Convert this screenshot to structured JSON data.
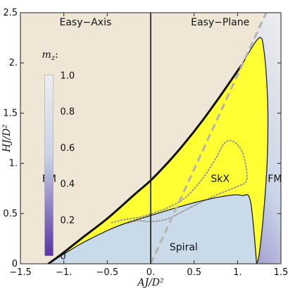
{
  "chart_data": {
    "type": "phase-diagram",
    "xlabel": "AJ/D²",
    "ylabel": "HJ/D²",
    "xlim": [
      -1.5,
      1.5
    ],
    "ylim": [
      0,
      2.5
    ],
    "xticks": [
      -1.5,
      -1.0,
      -0.5,
      0.0,
      0.5,
      1.0,
      1.5
    ],
    "xtick_labels": [
      "−1.5",
      "−1.",
      "−0.5",
      "0.",
      "0.5",
      "1.",
      "1.5"
    ],
    "yticks": [
      0,
      0.5,
      1.0,
      1.5,
      2.0,
      2.5
    ],
    "ytick_labels": [
      "0",
      "0.5",
      "1.",
      "1.5",
      "2.",
      "2.5"
    ],
    "colors": {
      "easy_axis_bg": "#efe6d6",
      "skx": "#ffff33",
      "spiral": "#c9dbe8",
      "fm_high": "#eeeeee",
      "fm_mid": "#c8d4e6",
      "fm_low": "#5a33a5",
      "boundary": "#111111",
      "dashed_line": "#b4b4b4",
      "dotted_line": "#999999"
    },
    "regions": [
      {
        "name": "Easy−Axis",
        "label": "Easy−Axis"
      },
      {
        "name": "Easy−Plane",
        "label": "Easy−Plane"
      },
      {
        "name": "SkX",
        "label": "SkX"
      },
      {
        "name": "FM-left",
        "label": "FM"
      },
      {
        "name": "FM-right",
        "label": "FM"
      },
      {
        "name": "Spiral",
        "label": "Spiral"
      }
    ],
    "boundaries": {
      "upper_skx": [
        [
          -1.18,
          0.0
        ],
        [
          -1.05,
          0.08
        ],
        [
          -0.8,
          0.25
        ],
        [
          -0.5,
          0.45
        ],
        [
          -0.2,
          0.68
        ],
        [
          0.0,
          0.83
        ],
        [
          0.2,
          1.01
        ],
        [
          0.4,
          1.21
        ],
        [
          0.6,
          1.43
        ],
        [
          0.8,
          1.67
        ],
        [
          1.0,
          1.92
        ],
        [
          1.05,
          1.98
        ]
      ],
      "skx_right_edge": [
        [
          1.05,
          1.98
        ],
        [
          1.2,
          2.2
        ],
        [
          1.27,
          2.25
        ],
        [
          1.3,
          2.15
        ],
        [
          1.33,
          1.9
        ],
        [
          1.35,
          1.5
        ],
        [
          1.34,
          1.0
        ],
        [
          1.3,
          0.5
        ],
        [
          1.25,
          0.1
        ],
        [
          1.22,
          0.0
        ]
      ],
      "spiral_top": [
        [
          -1.18,
          0.0
        ],
        [
          -1.05,
          0.07
        ],
        [
          -0.8,
          0.2
        ],
        [
          -0.5,
          0.33
        ],
        [
          -0.3,
          0.4
        ],
        [
          0.0,
          0.48
        ],
        [
          0.3,
          0.56
        ],
        [
          0.6,
          0.63
        ],
        [
          0.9,
          0.68
        ],
        [
          1.05,
          0.68
        ],
        [
          1.15,
          0.62
        ],
        [
          1.22,
          0.0
        ]
      ],
      "dotted_curve": [
        [
          -0.45,
          0.41
        ],
        [
          -0.3,
          0.44
        ],
        [
          -0.1,
          0.47
        ],
        [
          0.2,
          0.56
        ],
        [
          0.4,
          0.66
        ],
        [
          0.6,
          0.85
        ],
        [
          0.75,
          1.05
        ],
        [
          0.85,
          1.2
        ],
        [
          0.95,
          1.22
        ],
        [
          1.05,
          1.12
        ],
        [
          1.1,
          0.95
        ],
        [
          1.1,
          0.82
        ],
        [
          1.0,
          0.77
        ],
        [
          0.8,
          0.7
        ],
        [
          0.5,
          0.58
        ],
        [
          0.2,
          0.45
        ],
        [
          0.0,
          0.42
        ],
        [
          -0.15,
          0.43
        ],
        [
          -0.28,
          0.4
        ]
      ],
      "dashed_line": [
        [
          0.0,
          0.0
        ],
        [
          1.33,
          2.5
        ]
      ],
      "vertical_line_x": 0.0
    },
    "legend": {
      "title": "m",
      "subscript": "z",
      "suffix": ":",
      "values": [
        "1.0",
        "0.8",
        "0.6",
        "0.4",
        "0.2",
        "0"
      ],
      "range": [
        0,
        1
      ]
    }
  }
}
